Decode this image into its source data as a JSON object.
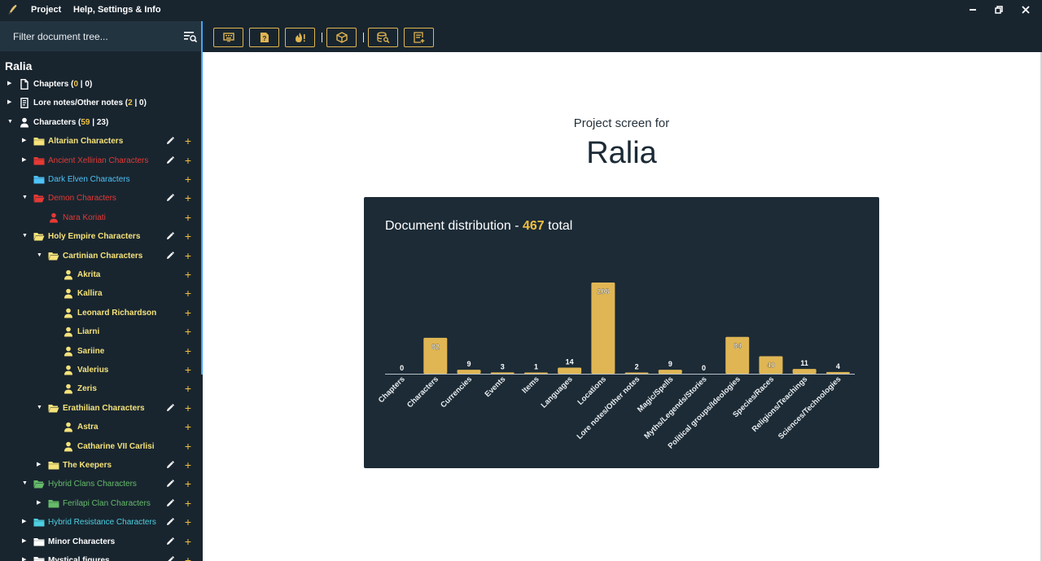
{
  "menu": {
    "project": "Project",
    "help": "Help, Settings & Info"
  },
  "window_controls": [
    "minimize",
    "restore",
    "close"
  ],
  "filter": {
    "placeholder": "Filter document tree..."
  },
  "tree_title": "Ralia",
  "tree": [
    {
      "label": "Chapters",
      "count_a": "0",
      "count_b": "0",
      "icon": "document-icon",
      "color": "#ffffff",
      "level": 0,
      "arrow": "▶",
      "edit": false,
      "add": false,
      "top": 0
    },
    {
      "label": "Lore notes/Other notes",
      "count_a": "2",
      "count_b": "0",
      "icon": "notes-icon",
      "color": "#ffffff",
      "level": 0,
      "arrow": "▶",
      "edit": false,
      "add": false
    },
    {
      "label": "Characters",
      "count_a": "59",
      "count_b": "23",
      "icon": "person-icon",
      "color": "#ffffff",
      "level": 0,
      "arrow": "▼",
      "edit": false,
      "add": false
    },
    {
      "label": "Altarian Characters",
      "icon": "folder-icon",
      "color": "#f5e27a",
      "level": 1,
      "arrow": "▶",
      "edit": true,
      "add": true
    },
    {
      "label": "Ancient Xellirian Characters",
      "icon": "folder-icon",
      "color": "#e53935",
      "level": 1,
      "arrow": "▶",
      "edit": true,
      "add": true
    },
    {
      "label": "Dark Elven Characters",
      "icon": "folder-icon",
      "color": "#4fc3f7",
      "level": 1,
      "arrow": "",
      "edit": false,
      "add": true
    },
    {
      "label": "Demon Characters",
      "icon": "folder-open-icon",
      "color": "#e53935",
      "level": 1,
      "arrow": "▼",
      "edit": true,
      "add": true
    },
    {
      "label": "Nara Koriati",
      "icon": "person-icon",
      "color": "#e53935",
      "level": 2,
      "arrow": "",
      "edit": false,
      "add": true
    },
    {
      "label": "Holy Empire Characters",
      "icon": "folder-open-icon",
      "color": "#f5e27a",
      "level": 1,
      "arrow": "▼",
      "edit": true,
      "add": true
    },
    {
      "label": "Cartinian Characters",
      "icon": "folder-open-icon",
      "color": "#f5e27a",
      "level": 2,
      "arrow": "▼",
      "edit": true,
      "add": true
    },
    {
      "label": "Akrita",
      "icon": "person-icon",
      "color": "#f5e27a",
      "level": 3,
      "arrow": "",
      "edit": false,
      "add": true
    },
    {
      "label": "Kallira",
      "icon": "person-icon",
      "color": "#f5e27a",
      "level": 3,
      "arrow": "",
      "edit": false,
      "add": true
    },
    {
      "label": "Leonard Richardson",
      "icon": "person-icon",
      "color": "#f5e27a",
      "level": 3,
      "arrow": "",
      "edit": false,
      "add": true
    },
    {
      "label": "Liarni",
      "icon": "person-icon",
      "color": "#f5e27a",
      "level": 3,
      "arrow": "",
      "edit": false,
      "add": true
    },
    {
      "label": "Sariine",
      "icon": "person-icon",
      "color": "#f5e27a",
      "level": 3,
      "arrow": "",
      "edit": false,
      "add": true
    },
    {
      "label": "Valerius",
      "icon": "person-icon",
      "color": "#f5e27a",
      "level": 3,
      "arrow": "",
      "edit": false,
      "add": true
    },
    {
      "label": "Zeris",
      "icon": "person-icon",
      "color": "#f5e27a",
      "level": 3,
      "arrow": "",
      "edit": false,
      "add": true
    },
    {
      "label": "Erathilian Characters",
      "icon": "folder-open-icon",
      "color": "#f5e27a",
      "level": 2,
      "arrow": "▼",
      "edit": true,
      "add": true
    },
    {
      "label": "Astra",
      "icon": "person-icon",
      "color": "#f5e27a",
      "level": 3,
      "arrow": "",
      "edit": false,
      "add": true
    },
    {
      "label": "Catharine VII Carlisi",
      "icon": "person-icon",
      "color": "#f5e27a",
      "level": 3,
      "arrow": "",
      "edit": false,
      "add": true
    },
    {
      "label": "The Keepers",
      "icon": "folder-icon",
      "color": "#f5e27a",
      "level": 2,
      "arrow": "▶",
      "edit": true,
      "add": true
    },
    {
      "label": "Hybrid Clans Characters",
      "icon": "folder-open-icon",
      "color": "#66bb6a",
      "level": 1,
      "arrow": "▼",
      "edit": true,
      "add": true
    },
    {
      "label": "Ferilapi Clan Characters",
      "icon": "folder-icon",
      "color": "#66bb6a",
      "level": 2,
      "arrow": "▶",
      "edit": true,
      "add": true
    },
    {
      "label": "Hybrid Resistance Characters",
      "icon": "folder-icon",
      "color": "#4dd0e1",
      "level": 1,
      "arrow": "▶",
      "edit": true,
      "add": true
    },
    {
      "label": "Minor Characters",
      "icon": "folder-icon",
      "color": "#ffffff",
      "level": 1,
      "arrow": "▶",
      "edit": true,
      "add": true
    },
    {
      "label": "Mystical figures",
      "icon": "folder-icon",
      "color": "#ffffff",
      "level": 1,
      "arrow": "▶",
      "edit": true,
      "add": true
    }
  ],
  "toolbar": [
    "keyboard-icon",
    "help-document-icon",
    "fire-icon",
    "box-icon",
    "database-search-icon",
    "add-note-icon"
  ],
  "main": {
    "subtitle": "Project screen for",
    "project_name": "Ralia"
  },
  "card": {
    "title_prefix": "Document distribution - ",
    "total": "467",
    "title_suffix": " total"
  },
  "chart_data": {
    "type": "bar",
    "title": "Document distribution - 467 total",
    "categories": [
      "Chapters",
      "Characters",
      "Currencies",
      "Events",
      "Items",
      "Languages",
      "Locations",
      "Lore notes/Other notes",
      "Magic/Spells",
      "Myths/Legends/Stories",
      "Political groups/Ideologies",
      "Species/Races",
      "Religions/Teachings",
      "Sciences/Technologies"
    ],
    "values": [
      0,
      82,
      9,
      3,
      1,
      14,
      208,
      2,
      9,
      0,
      84,
      40,
      11,
      4
    ],
    "ylim": [
      0,
      208
    ],
    "bar_color": "#e0b654",
    "grid": false,
    "legend": "none"
  },
  "colors": {
    "accent": "#f0c040",
    "panel": "#18252f",
    "card": "#1c2b36"
  }
}
